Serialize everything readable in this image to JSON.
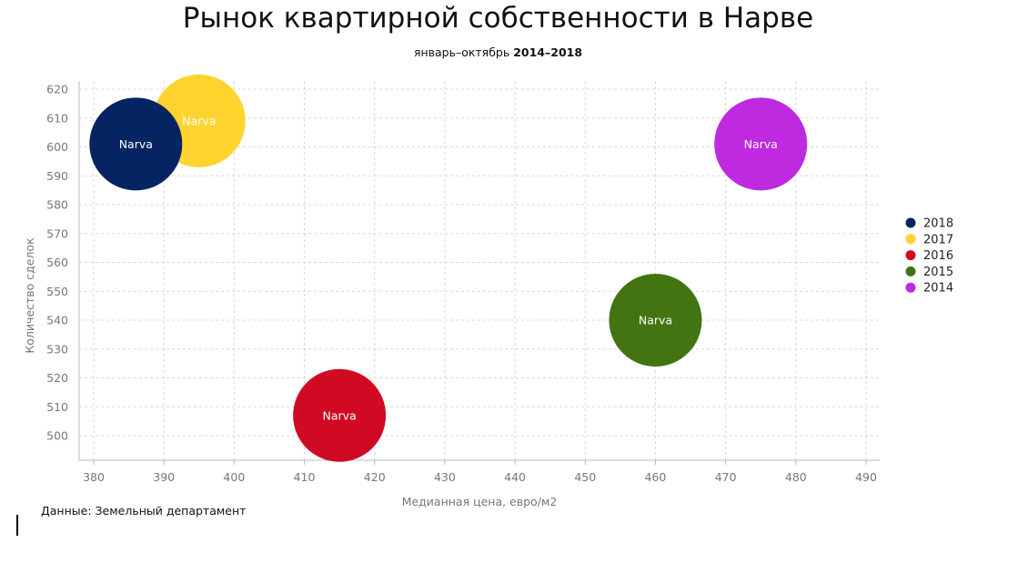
{
  "chart_data": {
    "type": "scatter",
    "title": "Рынок квартирной собственности в Нарве",
    "subtitle_prefix": "январь–октябрь",
    "subtitle_range": "2014–2018",
    "xlabel": "Медианная цена, евро/м2",
    "ylabel": "Количество сделок",
    "xlim": [
      378,
      492
    ],
    "ylim": [
      492,
      623
    ],
    "x_ticks": [
      380,
      390,
      400,
      410,
      420,
      430,
      440,
      450,
      460,
      470,
      480,
      490
    ],
    "y_ticks": [
      500,
      510,
      520,
      530,
      540,
      550,
      560,
      570,
      580,
      590,
      600,
      610,
      620
    ],
    "grid": true,
    "legend_position": "right",
    "series": [
      {
        "name": "2014",
        "color": "#bf29df",
        "points": [
          {
            "x": 475,
            "y": 601,
            "label": "Narva"
          }
        ]
      },
      {
        "name": "2015",
        "color": "#427412",
        "points": [
          {
            "x": 460,
            "y": 540,
            "label": "Narva"
          }
        ]
      },
      {
        "name": "2016",
        "color": "#cf0a22",
        "points": [
          {
            "x": 415,
            "y": 507,
            "label": "Narva"
          }
        ]
      },
      {
        "name": "2017",
        "color": "#ffd42e",
        "points": [
          {
            "x": 395,
            "y": 609,
            "label": "Narva"
          }
        ]
      },
      {
        "name": "2018",
        "color": "#062461",
        "points": [
          {
            "x": 386,
            "y": 601,
            "label": "Narva"
          }
        ]
      }
    ],
    "legend_order": [
      "2018",
      "2017",
      "2016",
      "2015",
      "2014"
    ],
    "source": "Данные: Земельный департамент"
  }
}
